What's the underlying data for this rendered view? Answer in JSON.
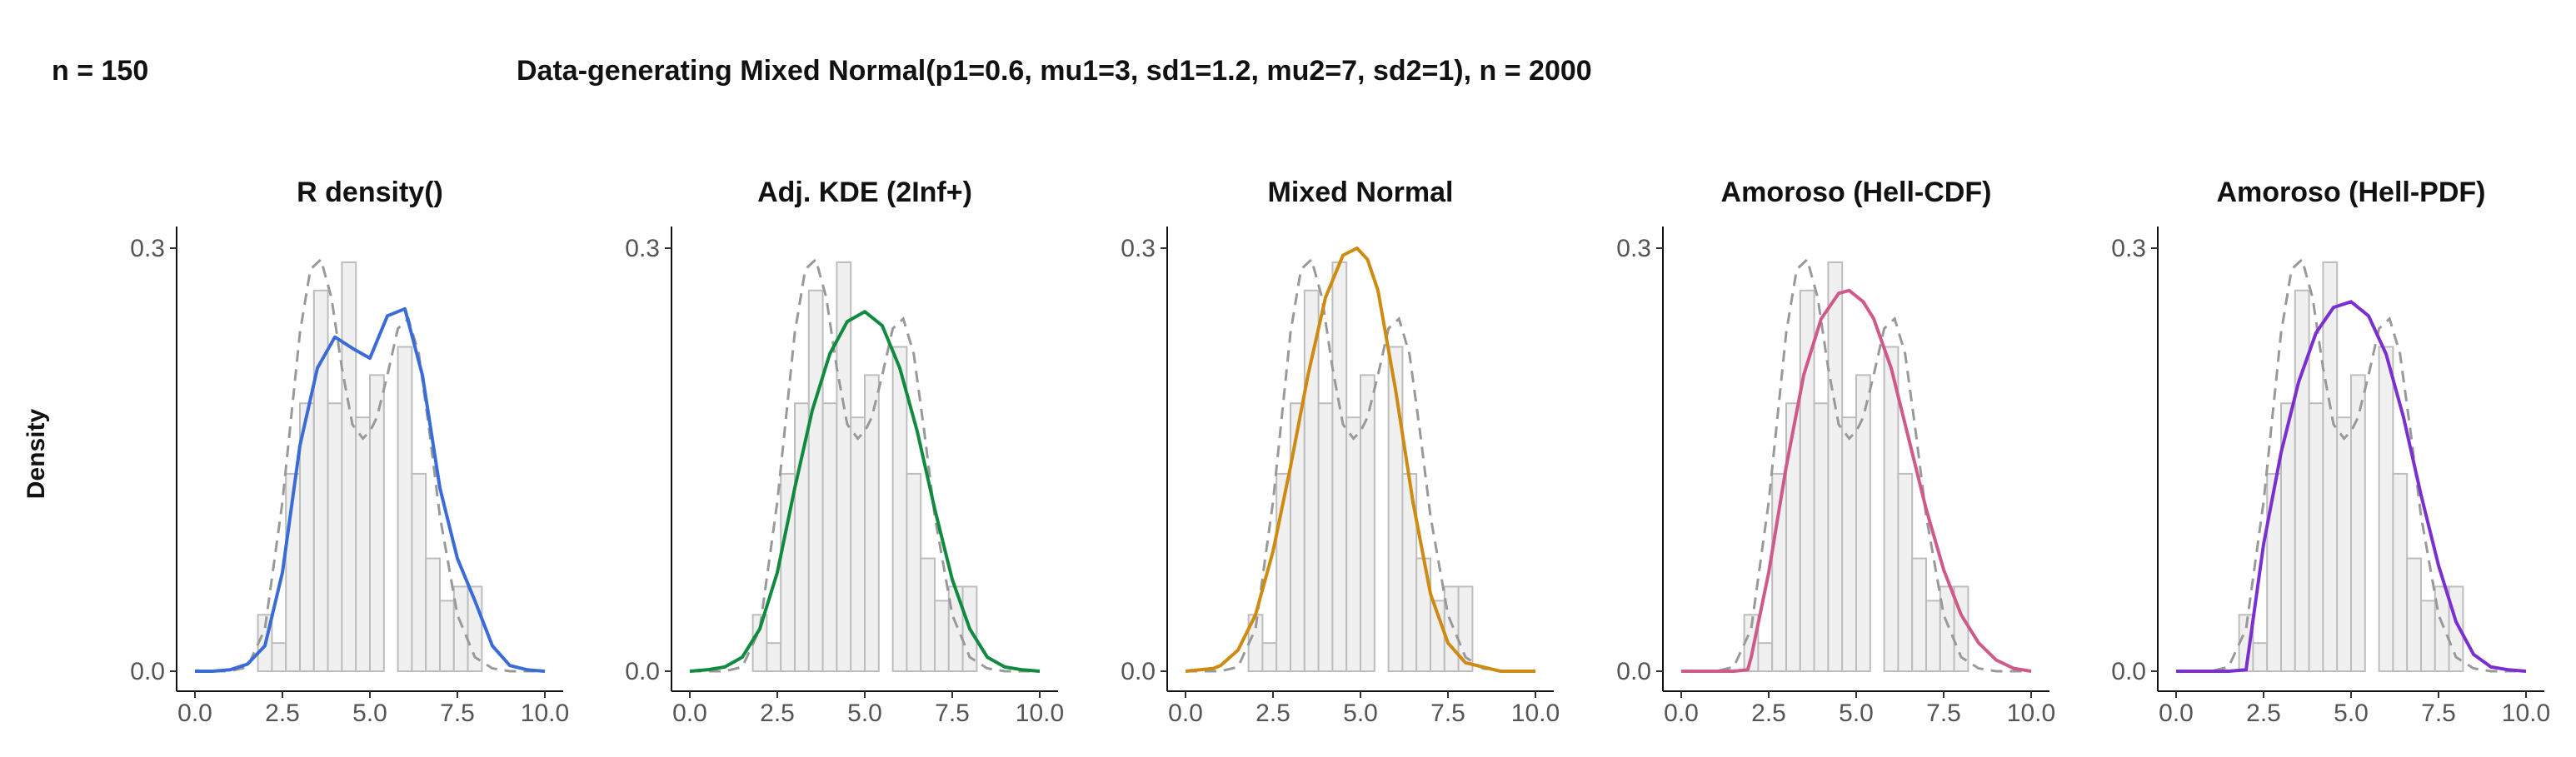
{
  "header": {
    "n_label": "n = 150",
    "title": "Data-generating Mixed Normal(p1=0.6, mu1=3, sd1=1.2, mu2=7, sd2=1), n = 2000"
  },
  "y_axis_label": "Density",
  "colors": {
    "hist_fill": "#f0f0f0",
    "hist_stroke": "#bdbdbd",
    "reference": "#999999",
    "panels": [
      "#3a6bd6",
      "#0f8a3e",
      "#cf8a12",
      "#cf5a8a",
      "#7b2fcf"
    ]
  },
  "chart_data": [
    {
      "type": "line",
      "title": "R density()",
      "xlim": [
        0,
        10
      ],
      "ylim": [
        0,
        0.3
      ],
      "x_ticks": [
        "0.0",
        "2.5",
        "5.0",
        "7.5",
        "10.0"
      ],
      "y_ticks": [
        "0.0",
        "0.3"
      ],
      "series": [
        {
          "x": [
            0,
            0.5,
            1,
            1.5,
            2,
            2.5,
            3,
            3.5,
            4,
            4.5,
            5,
            5.5,
            6,
            6.5,
            7,
            7.5,
            8,
            8.5,
            9,
            9.5,
            10
          ],
          "y": [
            0,
            0,
            0.001,
            0.005,
            0.018,
            0.07,
            0.16,
            0.215,
            0.237,
            0.229,
            0.222,
            0.252,
            0.257,
            0.21,
            0.13,
            0.08,
            0.05,
            0.018,
            0.004,
            0.001,
            0
          ]
        }
      ]
    },
    {
      "type": "line",
      "title": "Adj. KDE (2Inf+)",
      "xlim": [
        0,
        10
      ],
      "ylim": [
        0,
        0.3
      ],
      "x_ticks": [
        "0.0",
        "2.5",
        "5.0",
        "7.5",
        "10.0"
      ],
      "y_ticks": [
        "0.0",
        "0.3"
      ],
      "series": [
        {
          "x": [
            0,
            0.5,
            1,
            1.5,
            2,
            2.5,
            3,
            3.5,
            4,
            4.5,
            5,
            5.5,
            6,
            6.5,
            7,
            7.5,
            8,
            8.5,
            9,
            9.5,
            10
          ],
          "y": [
            0,
            0.001,
            0.003,
            0.01,
            0.03,
            0.07,
            0.13,
            0.185,
            0.225,
            0.248,
            0.255,
            0.245,
            0.215,
            0.17,
            0.115,
            0.065,
            0.03,
            0.01,
            0.003,
            0.001,
            0
          ]
        }
      ]
    },
    {
      "type": "line",
      "title": "Mixed Normal",
      "xlim": [
        0,
        10
      ],
      "ylim": [
        0,
        0.3
      ],
      "x_ticks": [
        "0.0",
        "2.5",
        "5.0",
        "7.5",
        "10.0"
      ],
      "y_ticks": [
        "0.0",
        "0.3"
      ],
      "series": [
        {
          "x": [
            0,
            0.8,
            1,
            1.5,
            2,
            2.5,
            3,
            3.5,
            4,
            4.5,
            4.9,
            5.2,
            5.5,
            6,
            6.5,
            7,
            7.5,
            8,
            9,
            10
          ],
          "y": [
            0,
            0.002,
            0.004,
            0.015,
            0.04,
            0.085,
            0.145,
            0.21,
            0.265,
            0.295,
            0.3,
            0.292,
            0.27,
            0.2,
            0.12,
            0.055,
            0.02,
            0.006,
            0,
            0
          ]
        }
      ]
    },
    {
      "type": "line",
      "title": "Amoroso (Hell-CDF)",
      "xlim": [
        0,
        10
      ],
      "ylim": [
        0,
        0.3
      ],
      "x_ticks": [
        "0.0",
        "2.5",
        "5.0",
        "7.5",
        "10.0"
      ],
      "y_ticks": [
        "0.0",
        "0.3"
      ],
      "series": [
        {
          "x": [
            0,
            1,
            1.5,
            1.9,
            2,
            2.5,
            3,
            3.5,
            4,
            4.5,
            4.8,
            5.2,
            5.5,
            6,
            6.5,
            7,
            7.5,
            8,
            8.5,
            9,
            9.5,
            10
          ],
          "y": [
            0,
            0,
            0,
            0.001,
            0.01,
            0.07,
            0.145,
            0.21,
            0.25,
            0.268,
            0.27,
            0.262,
            0.25,
            0.215,
            0.165,
            0.115,
            0.072,
            0.04,
            0.02,
            0.008,
            0.002,
            0
          ]
        }
      ]
    },
    {
      "type": "line",
      "title": "Amoroso (Hell-PDF)",
      "xlim": [
        0,
        10
      ],
      "ylim": [
        0,
        0.3
      ],
      "x_ticks": [
        "0.0",
        "2.5",
        "5.0",
        "7.5",
        "10.0"
      ],
      "y_ticks": [
        "0.0",
        "0.3"
      ],
      "series": [
        {
          "x": [
            0,
            1,
            1.5,
            2,
            2.5,
            3,
            3.5,
            4,
            4.5,
            5,
            5.5,
            6,
            6.5,
            7,
            7.5,
            8,
            8.5,
            9,
            9.5,
            10
          ],
          "y": [
            0,
            0,
            0,
            0.001,
            0.09,
            0.155,
            0.205,
            0.24,
            0.258,
            0.262,
            0.252,
            0.225,
            0.18,
            0.125,
            0.075,
            0.035,
            0.012,
            0.003,
            0.001,
            0
          ]
        }
      ]
    }
  ],
  "reference_curve": {
    "x": [
      0,
      1,
      1.5,
      2,
      2.5,
      3,
      3.3,
      3.6,
      3.9,
      4.2,
      4.5,
      4.8,
      5,
      5.2,
      5.5,
      5.8,
      6.1,
      6.4,
      6.7,
      7,
      7.5,
      8,
      8.5,
      9,
      10
    ],
    "y": [
      0,
      0,
      0.003,
      0.03,
      0.12,
      0.24,
      0.285,
      0.292,
      0.265,
      0.215,
      0.175,
      0.165,
      0.17,
      0.18,
      0.21,
      0.243,
      0.25,
      0.225,
      0.17,
      0.11,
      0.04,
      0.01,
      0.002,
      0,
      0
    ]
  },
  "histogram": {
    "bins": [
      [
        1.8,
        2.2,
        0.04
      ],
      [
        2.2,
        2.6,
        0.02
      ],
      [
        2.6,
        3.0,
        0.14
      ],
      [
        3.0,
        3.4,
        0.19
      ],
      [
        3.4,
        3.8,
        0.27
      ],
      [
        3.8,
        4.2,
        0.19
      ],
      [
        4.2,
        4.6,
        0.29
      ],
      [
        4.6,
        5.0,
        0.18
      ],
      [
        5.0,
        5.4,
        0.21
      ],
      [
        5.4,
        5.8,
        0.0
      ],
      [
        5.8,
        6.2,
        0.23
      ],
      [
        6.2,
        6.6,
        0.14
      ],
      [
        6.6,
        7.0,
        0.08
      ],
      [
        7.0,
        7.4,
        0.05
      ],
      [
        7.4,
        7.8,
        0.06
      ],
      [
        7.8,
        8.2,
        0.06
      ]
    ]
  }
}
